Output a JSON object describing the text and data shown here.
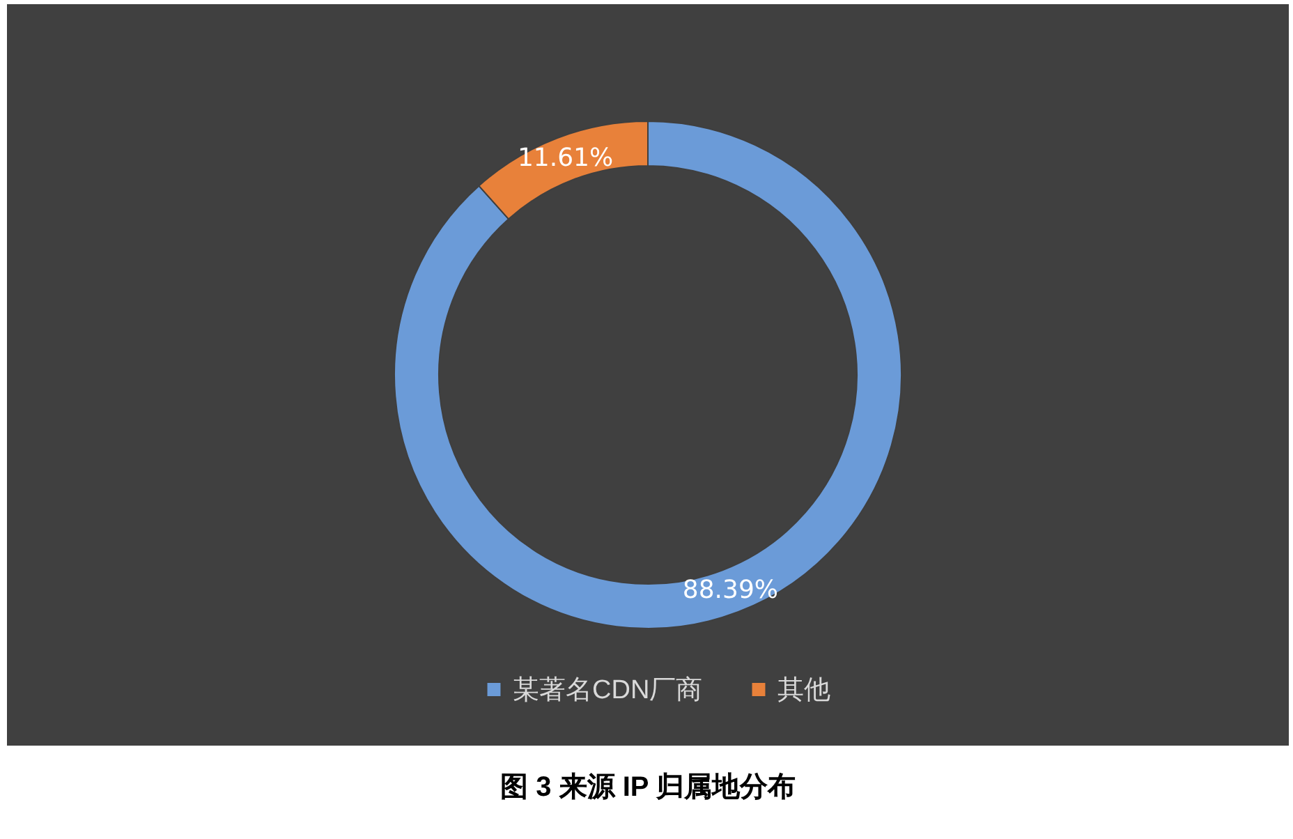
{
  "chart_data": {
    "type": "donut",
    "title": "图 3 来源 IP 归属地分布",
    "categories": [
      "某著名CDN厂商",
      "其他"
    ],
    "values": [
      88.39,
      11.61
    ],
    "colors": [
      "#6b9bd8",
      "#e8813a"
    ],
    "value_labels": [
      "88.39%",
      "11.61%"
    ],
    "legend": "bottom"
  }
}
